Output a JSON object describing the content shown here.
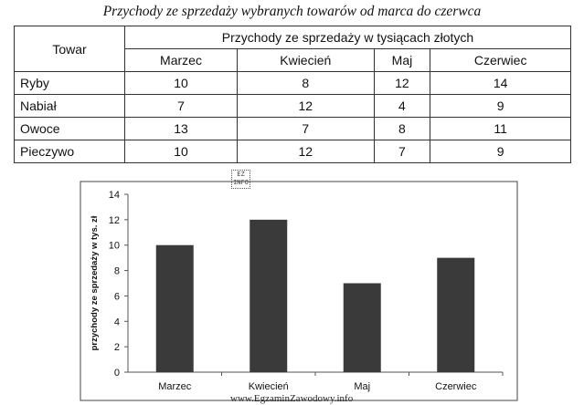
{
  "title": "Przychody ze sprzedaży wybranych towarów od marca do czerwca",
  "table": {
    "corner_header": "Towar",
    "group_header": "Przychody ze sprzedaży w tysiącach złotych",
    "columns": [
      "Marzec",
      "Kwiecień",
      "Maj",
      "Czerwiec"
    ],
    "rows": [
      {
        "label": "Ryby",
        "values": [
          "10",
          "8",
          "12",
          "14"
        ]
      },
      {
        "label": "Nabiał",
        "values": [
          "7",
          "12",
          "4",
          "9"
        ]
      },
      {
        "label": "Owoce",
        "values": [
          "13",
          "7",
          "8",
          "11"
        ]
      },
      {
        "label": "Pieczywo",
        "values": [
          "10",
          "12",
          "7",
          "9"
        ]
      }
    ]
  },
  "stamp_text": "EZ INFO",
  "watermark": "www.EgzaminZawodowy.info",
  "chart_data": {
    "type": "bar",
    "categories": [
      "Marzec",
      "Kwiecień",
      "Maj",
      "Czerwiec"
    ],
    "values": [
      10,
      12,
      7,
      9
    ],
    "title": "",
    "xlabel": "",
    "ylabel": "przychody ze sprzedaży w tys. zł",
    "ylim": [
      0,
      14
    ],
    "yticks": [
      0,
      2,
      4,
      6,
      8,
      10,
      12,
      14
    ],
    "grid": false,
    "legend": "none",
    "bar_color": "#3a3a3a"
  }
}
